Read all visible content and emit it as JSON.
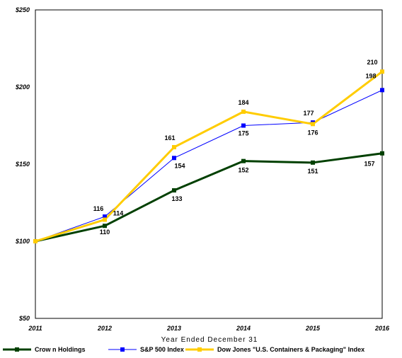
{
  "chart_data": {
    "type": "line",
    "xlabel": "Year Ended December 31",
    "ylabel": "",
    "categories": [
      "2011",
      "2012",
      "2013",
      "2014",
      "2015",
      "2016"
    ],
    "y_ticks": [
      "$50",
      "$100",
      "$150",
      "$200",
      "$250"
    ],
    "ylim": [
      50,
      250
    ],
    "grid": false,
    "legend_position": "bottom",
    "series": [
      {
        "name": "Crow n Holdings",
        "color": "#004000",
        "marker": "square",
        "values": [
          100,
          110,
          133,
          152,
          151,
          157
        ],
        "labels": [
          "",
          "110",
          "133",
          "152",
          "151",
          "157"
        ]
      },
      {
        "name": "S&P 500 Index",
        "color": "#0000ff",
        "marker": "square",
        "values": [
          100,
          116,
          154,
          175,
          177,
          198
        ],
        "labels": [
          "",
          "116",
          "154",
          "175",
          "177",
          "198"
        ]
      },
      {
        "name": "Dow Jones \"U.S. Containers & Packaging\" Index",
        "color": "#ffcc00",
        "marker": "square",
        "values": [
          100,
          114,
          161,
          184,
          176,
          210
        ],
        "labels": [
          "",
          "114",
          "161",
          "184",
          "176",
          "210"
        ]
      }
    ]
  }
}
